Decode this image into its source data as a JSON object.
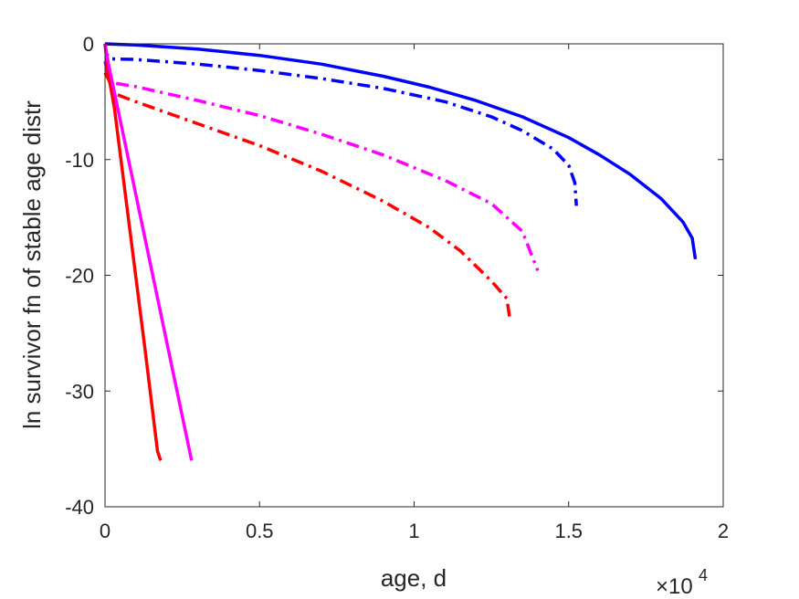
{
  "chart_data": {
    "type": "line",
    "xlabel": "age, d",
    "ylabel": "ln survivor fn of stable age distr",
    "x_exponent_label": {
      "base": "×10",
      "exp": "4"
    },
    "xlim": [
      0,
      20000
    ],
    "ylim": [
      -40,
      0
    ],
    "x_ticks": [
      0,
      5000,
      10000,
      15000,
      20000
    ],
    "x_tick_labels": [
      "0",
      "0.5",
      "1",
      "1.5",
      "2"
    ],
    "y_ticks": [
      0,
      -10,
      -20,
      -30,
      -40
    ],
    "y_tick_labels": [
      "0",
      "-10",
      "-20",
      "-30",
      "-40"
    ],
    "grid": false,
    "series": [
      {
        "color": "#0000ff",
        "style": "solid",
        "points": [
          [
            0,
            0
          ],
          [
            1000,
            -0.1
          ],
          [
            3000,
            -0.45
          ],
          [
            5000,
            -1.0
          ],
          [
            7000,
            -1.75
          ],
          [
            9000,
            -2.8
          ],
          [
            10500,
            -3.75
          ],
          [
            12000,
            -4.9
          ],
          [
            13500,
            -6.3
          ],
          [
            15000,
            -8.1
          ],
          [
            16000,
            -9.6
          ],
          [
            17000,
            -11.3
          ],
          [
            18000,
            -13.4
          ],
          [
            18700,
            -15.4
          ],
          [
            19000,
            -16.8
          ],
          [
            19100,
            -18.6
          ]
        ]
      },
      {
        "color": "#0000ff",
        "style": "dashdot",
        "points": [
          [
            0,
            0
          ],
          [
            50,
            -0.9
          ],
          [
            200,
            -1.3
          ],
          [
            1000,
            -1.35
          ],
          [
            3000,
            -1.75
          ],
          [
            5000,
            -2.3
          ],
          [
            7000,
            -3.0
          ],
          [
            9000,
            -3.85
          ],
          [
            11000,
            -5.0
          ],
          [
            12500,
            -6.3
          ],
          [
            13500,
            -7.5
          ],
          [
            14500,
            -9.1
          ],
          [
            15000,
            -10.5
          ],
          [
            15200,
            -12.0
          ],
          [
            15250,
            -14.0
          ]
        ]
      },
      {
        "color": "#ff00ff",
        "style": "dashdot",
        "points": [
          [
            0,
            -1.5
          ],
          [
            100,
            -2.8
          ],
          [
            300,
            -3.4
          ],
          [
            1000,
            -3.7
          ],
          [
            3000,
            -4.9
          ],
          [
            5000,
            -6.2
          ],
          [
            7000,
            -7.8
          ],
          [
            9000,
            -9.6
          ],
          [
            11000,
            -11.8
          ],
          [
            12500,
            -13.8
          ],
          [
            13500,
            -16.2
          ],
          [
            14000,
            -19.6
          ]
        ]
      },
      {
        "color": "#ff0000",
        "style": "dashdot",
        "points": [
          [
            0,
            -2.5
          ],
          [
            100,
            -3.0
          ],
          [
            300,
            -4.3
          ],
          [
            1000,
            -5.0
          ],
          [
            3000,
            -6.9
          ],
          [
            5000,
            -8.8
          ],
          [
            7000,
            -11.0
          ],
          [
            9000,
            -13.6
          ],
          [
            10500,
            -15.9
          ],
          [
            11500,
            -17.9
          ],
          [
            12500,
            -20.5
          ],
          [
            13000,
            -22.0
          ],
          [
            13100,
            -23.8
          ]
        ]
      },
      {
        "color": "#ff0000",
        "style": "solid",
        "points": [
          [
            0,
            0
          ],
          [
            100,
            -2.5
          ],
          [
            300,
            -5.5
          ],
          [
            800,
            -16.0
          ],
          [
            1300,
            -26.5
          ],
          [
            1700,
            -35.2
          ],
          [
            1800,
            -36.0
          ]
        ]
      },
      {
        "color": "#ff00ff",
        "style": "solid",
        "points": [
          [
            0,
            0
          ],
          [
            100,
            -1.6
          ],
          [
            2800,
            -36.0
          ]
        ]
      }
    ]
  }
}
